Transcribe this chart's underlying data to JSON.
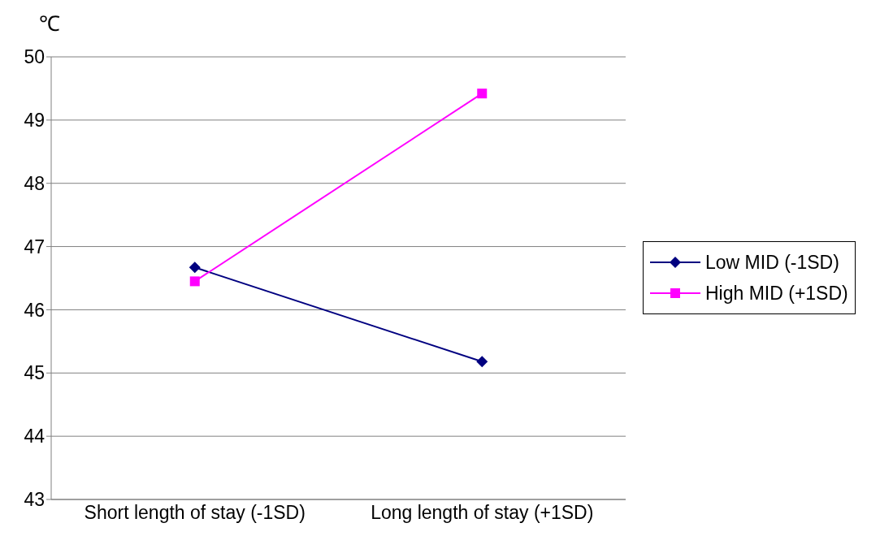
{
  "chart_data": {
    "type": "line",
    "ylabel": "℃",
    "categories": [
      "Short length of stay (-1SD)",
      "Long length of stay (+1SD)"
    ],
    "series": [
      {
        "name": "Low MID (-1SD)",
        "color": "#000080",
        "values": [
          46.67,
          45.18
        ],
        "marker": "diamond"
      },
      {
        "name": "High MID (+1SD)",
        "color": "#ff00ff",
        "values": [
          46.45,
          49.42
        ],
        "marker": "square"
      }
    ],
    "ylim": [
      43,
      50
    ],
    "yticks": [
      43,
      44,
      45,
      46,
      47,
      48,
      49,
      50
    ],
    "grid": "y",
    "legend": "right",
    "line_style": "solid"
  }
}
